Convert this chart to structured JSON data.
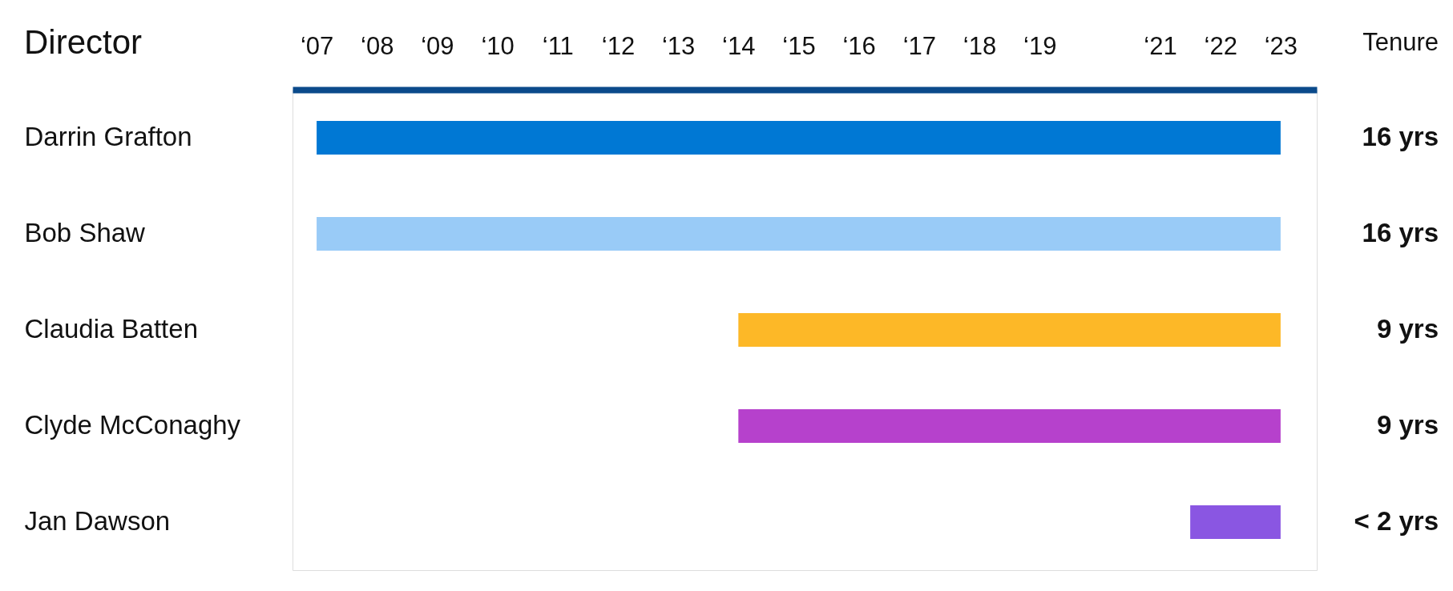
{
  "chart_data": {
    "type": "bar",
    "orientation": "horizontal",
    "ylabel": "Director",
    "categories": [
      "Darrin Grafton",
      "Bob Shaw",
      "Claudia Batten",
      "Clyde McConaghy",
      "Jan Dawson"
    ],
    "base": [
      7,
      7,
      14,
      14,
      21.5
    ],
    "values": [
      16,
      16,
      9,
      9,
      1.5
    ],
    "colors": [
      "#0078d4",
      "#99cbf7",
      "#fdb827",
      "#b641cc",
      "#8a56e2"
    ],
    "value_labels": [
      "16 yrs",
      "16 yrs",
      "9 yrs",
      "9 yrs",
      "< 2 yrs"
    ],
    "annotations": [
      "Tenure"
    ],
    "xlim": [
      6.6,
      23.6
    ],
    "xticks": [
      {
        "value": 7,
        "label": "‘07"
      },
      {
        "value": 8,
        "label": "‘08"
      },
      {
        "value": 9,
        "label": "‘09"
      },
      {
        "value": 10,
        "label": "‘10"
      },
      {
        "value": 11,
        "label": "‘11"
      },
      {
        "value": 12,
        "label": "‘12"
      },
      {
        "value": 13,
        "label": "‘13"
      },
      {
        "value": 14,
        "label": "‘14"
      },
      {
        "value": 15,
        "label": "‘15"
      },
      {
        "value": 16,
        "label": "‘16"
      },
      {
        "value": 17,
        "label": "‘17"
      },
      {
        "value": 18,
        "label": "‘18"
      },
      {
        "value": 19,
        "label": "‘19"
      },
      {
        "value": 21,
        "label": "‘21"
      },
      {
        "value": 22,
        "label": "‘22"
      },
      {
        "value": 23,
        "label": "‘23"
      }
    ],
    "grid": false
  }
}
